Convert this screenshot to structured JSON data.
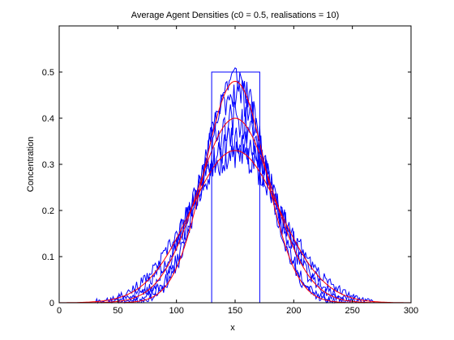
{
  "chart_data": {
    "type": "line",
    "title": "Average Agent Densities (c0 = 0.5, realisations = 10)",
    "xlabel": "x",
    "ylabel": "Concentration",
    "xlim": [
      0,
      300
    ],
    "ylim": [
      0,
      0.6
    ],
    "xticks": [
      0,
      50,
      100,
      150,
      200,
      250,
      300
    ],
    "xtick_labels": [
      "0",
      "50",
      "100",
      "150",
      "200",
      "250",
      "300"
    ],
    "yticks": [
      0,
      0.1,
      0.2,
      0.3,
      0.4,
      0.5
    ],
    "ytick_labels": [
      "0",
      "0.1",
      "0.2",
      "0.3",
      "0.4",
      "0.5"
    ],
    "grid": false,
    "legend": "none",
    "colors": {
      "blue": "#0000ff",
      "red": "#ff0000",
      "frame": "#000000"
    },
    "initial_condition": {
      "color": "blue",
      "x": [
        0,
        130,
        130,
        171,
        171,
        300
      ],
      "y": [
        0,
        0,
        0.5,
        0.5,
        0,
        0
      ]
    },
    "theory_curves": [
      {
        "color": "red",
        "center": 150,
        "peak": 0.48,
        "width": 26
      },
      {
        "color": "red",
        "center": 150,
        "peak": 0.4,
        "width": 32
      },
      {
        "color": "red",
        "center": 150,
        "peak": 0.33,
        "width": 38
      }
    ],
    "simulated_curves": [
      {
        "color": "blue",
        "center": 150,
        "peak": 0.49,
        "width": 26,
        "noise": 0.035,
        "seed": 11
      },
      {
        "color": "blue",
        "center": 150,
        "peak": 0.46,
        "width": 28,
        "noise": 0.04,
        "seed": 23
      },
      {
        "color": "blue",
        "center": 150,
        "peak": 0.4,
        "width": 32,
        "noise": 0.04,
        "seed": 37
      },
      {
        "color": "blue",
        "center": 150,
        "peak": 0.35,
        "width": 36,
        "noise": 0.035,
        "seed": 51
      },
      {
        "color": "blue",
        "center": 150,
        "peak": 0.32,
        "width": 40,
        "noise": 0.03,
        "seed": 67
      }
    ]
  }
}
